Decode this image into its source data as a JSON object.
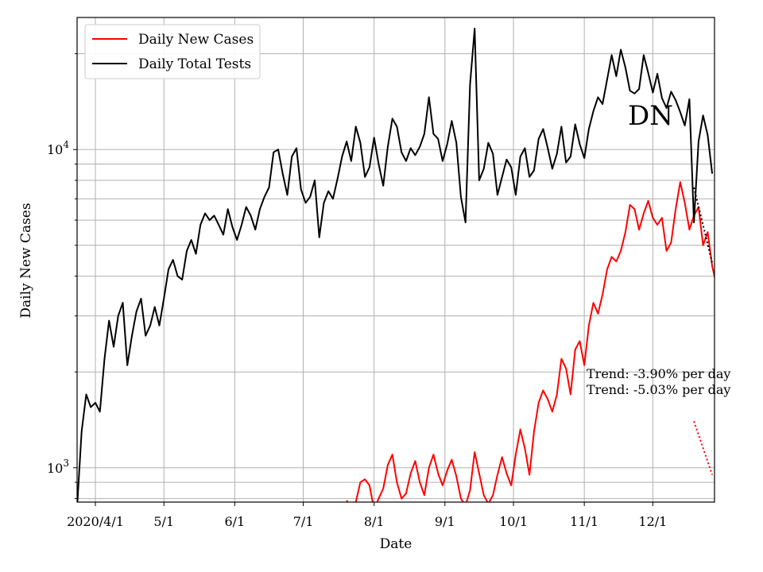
{
  "chart_data": {
    "type": "line",
    "xlabel": "Date",
    "ylabel": "Daily New Cases",
    "yscale": "log",
    "ylim": [
      780,
      26000
    ],
    "xlim_day": [
      -8,
      271
    ],
    "grid": true,
    "legend_position": "upper-left",
    "x_ticks": [
      {
        "day": 0,
        "label": "2020/4/1"
      },
      {
        "day": 30,
        "label": "5/1"
      },
      {
        "day": 61,
        "label": "6/1"
      },
      {
        "day": 91,
        "label": "7/1"
      },
      {
        "day": 122,
        "label": "8/1"
      },
      {
        "day": 153,
        "label": "9/1"
      },
      {
        "day": 183,
        "label": "10/1"
      },
      {
        "day": 214,
        "label": "11/1"
      },
      {
        "day": 244,
        "label": "12/1"
      }
    ],
    "y_major_ticks": [
      {
        "value": 1000,
        "base": "10",
        "exp": "3"
      },
      {
        "value": 10000,
        "base": "10",
        "exp": "4"
      }
    ],
    "y_minor_ticks": [
      800,
      900,
      2000,
      3000,
      4000,
      5000,
      6000,
      7000,
      8000,
      9000,
      20000
    ],
    "series": [
      {
        "name": "Daily New Cases",
        "color": "#ff0000",
        "points": [
          [
            110,
            790
          ],
          [
            112,
            740
          ],
          [
            114,
            780
          ],
          [
            116,
            900
          ],
          [
            118,
            920
          ],
          [
            120,
            880
          ],
          [
            122,
            740
          ],
          [
            124,
            800
          ],
          [
            126,
            860
          ],
          [
            128,
            1020
          ],
          [
            130,
            1100
          ],
          [
            132,
            900
          ],
          [
            134,
            800
          ],
          [
            136,
            830
          ],
          [
            138,
            960
          ],
          [
            140,
            1050
          ],
          [
            142,
            900
          ],
          [
            144,
            820
          ],
          [
            146,
            1000
          ],
          [
            148,
            1100
          ],
          [
            150,
            960
          ],
          [
            152,
            880
          ],
          [
            154,
            980
          ],
          [
            156,
            1060
          ],
          [
            158,
            940
          ],
          [
            160,
            800
          ],
          [
            162,
            760
          ],
          [
            164,
            850
          ],
          [
            166,
            1120
          ],
          [
            168,
            960
          ],
          [
            170,
            820
          ],
          [
            172,
            770
          ],
          [
            174,
            820
          ],
          [
            176,
            950
          ],
          [
            178,
            1080
          ],
          [
            180,
            960
          ],
          [
            182,
            880
          ],
          [
            184,
            1100
          ],
          [
            186,
            1320
          ],
          [
            188,
            1150
          ],
          [
            190,
            950
          ],
          [
            192,
            1300
          ],
          [
            194,
            1600
          ],
          [
            196,
            1750
          ],
          [
            198,
            1640
          ],
          [
            200,
            1500
          ],
          [
            202,
            1700
          ],
          [
            204,
            2200
          ],
          [
            206,
            2050
          ],
          [
            208,
            1700
          ],
          [
            210,
            2350
          ],
          [
            212,
            2500
          ],
          [
            214,
            2100
          ],
          [
            216,
            2800
          ],
          [
            218,
            3300
          ],
          [
            220,
            3050
          ],
          [
            222,
            3500
          ],
          [
            224,
            4200
          ],
          [
            226,
            4600
          ],
          [
            228,
            4450
          ],
          [
            230,
            4800
          ],
          [
            232,
            5500
          ],
          [
            234,
            6700
          ],
          [
            236,
            6500
          ],
          [
            238,
            5600
          ],
          [
            240,
            6300
          ],
          [
            242,
            6900
          ],
          [
            244,
            6100
          ],
          [
            246,
            5800
          ],
          [
            248,
            6100
          ],
          [
            250,
            4800
          ],
          [
            252,
            5100
          ],
          [
            254,
            6500
          ],
          [
            256,
            7900
          ],
          [
            258,
            6800
          ],
          [
            260,
            5600
          ],
          [
            262,
            6200
          ],
          [
            264,
            6600
          ],
          [
            266,
            5000
          ],
          [
            268,
            5500
          ],
          [
            270,
            4300
          ],
          [
            272,
            3700
          ],
          [
            274,
            5500
          ]
        ]
      },
      {
        "name": "Daily Total Tests",
        "color": "#000000",
        "points": [
          [
            -8,
            750
          ],
          [
            -6,
            1300
          ],
          [
            -4,
            1700
          ],
          [
            -2,
            1550
          ],
          [
            0,
            1600
          ],
          [
            2,
            1500
          ],
          [
            4,
            2200
          ],
          [
            6,
            2900
          ],
          [
            8,
            2400
          ],
          [
            10,
            3000
          ],
          [
            12,
            3300
          ],
          [
            14,
            2100
          ],
          [
            16,
            2600
          ],
          [
            18,
            3100
          ],
          [
            20,
            3400
          ],
          [
            22,
            2600
          ],
          [
            24,
            2800
          ],
          [
            26,
            3200
          ],
          [
            28,
            2800
          ],
          [
            30,
            3400
          ],
          [
            32,
            4200
          ],
          [
            34,
            4500
          ],
          [
            36,
            4000
          ],
          [
            38,
            3900
          ],
          [
            40,
            4800
          ],
          [
            42,
            5200
          ],
          [
            44,
            4700
          ],
          [
            46,
            5800
          ],
          [
            48,
            6300
          ],
          [
            50,
            6000
          ],
          [
            52,
            6200
          ],
          [
            54,
            5800
          ],
          [
            56,
            5400
          ],
          [
            58,
            6500
          ],
          [
            60,
            5700
          ],
          [
            62,
            5200
          ],
          [
            64,
            5800
          ],
          [
            66,
            6600
          ],
          [
            68,
            6200
          ],
          [
            70,
            5600
          ],
          [
            72,
            6500
          ],
          [
            74,
            7100
          ],
          [
            76,
            7600
          ],
          [
            78,
            9800
          ],
          [
            80,
            10000
          ],
          [
            82,
            8400
          ],
          [
            84,
            7200
          ],
          [
            86,
            9500
          ],
          [
            88,
            10100
          ],
          [
            90,
            7500
          ],
          [
            92,
            6800
          ],
          [
            94,
            7100
          ],
          [
            96,
            8000
          ],
          [
            98,
            5300
          ],
          [
            100,
            6800
          ],
          [
            102,
            7400
          ],
          [
            104,
            7000
          ],
          [
            106,
            8100
          ],
          [
            108,
            9500
          ],
          [
            110,
            10600
          ],
          [
            112,
            9200
          ],
          [
            114,
            11800
          ],
          [
            116,
            10500
          ],
          [
            118,
            8200
          ],
          [
            120,
            8800
          ],
          [
            122,
            10900
          ],
          [
            124,
            9000
          ],
          [
            126,
            7700
          ],
          [
            128,
            10200
          ],
          [
            130,
            12500
          ],
          [
            132,
            11800
          ],
          [
            134,
            9800
          ],
          [
            136,
            9200
          ],
          [
            138,
            10100
          ],
          [
            140,
            9600
          ],
          [
            142,
            10200
          ],
          [
            144,
            11200
          ],
          [
            146,
            14600
          ],
          [
            148,
            11200
          ],
          [
            150,
            10800
          ],
          [
            152,
            9200
          ],
          [
            154,
            10400
          ],
          [
            156,
            12300
          ],
          [
            158,
            10500
          ],
          [
            160,
            7100
          ],
          [
            162,
            5900
          ],
          [
            164,
            16000
          ],
          [
            166,
            24000
          ],
          [
            168,
            8000
          ],
          [
            170,
            8700
          ],
          [
            172,
            10500
          ],
          [
            174,
            9700
          ],
          [
            176,
            7200
          ],
          [
            178,
            8200
          ],
          [
            180,
            9300
          ],
          [
            182,
            8800
          ],
          [
            184,
            7200
          ],
          [
            186,
            9500
          ],
          [
            188,
            10100
          ],
          [
            190,
            8200
          ],
          [
            192,
            8600
          ],
          [
            194,
            10800
          ],
          [
            196,
            11600
          ],
          [
            198,
            10100
          ],
          [
            200,
            8700
          ],
          [
            202,
            9700
          ],
          [
            204,
            11800
          ],
          [
            206,
            9100
          ],
          [
            208,
            9500
          ],
          [
            210,
            12000
          ],
          [
            212,
            10400
          ],
          [
            214,
            9400
          ],
          [
            216,
            11600
          ],
          [
            218,
            13200
          ],
          [
            220,
            14600
          ],
          [
            222,
            13900
          ],
          [
            224,
            16600
          ],
          [
            226,
            19800
          ],
          [
            228,
            17000
          ],
          [
            230,
            20600
          ],
          [
            232,
            18100
          ],
          [
            234,
            15300
          ],
          [
            236,
            15000
          ],
          [
            238,
            15500
          ],
          [
            240,
            19800
          ],
          [
            242,
            17400
          ],
          [
            244,
            15100
          ],
          [
            246,
            17300
          ],
          [
            248,
            14500
          ],
          [
            250,
            13500
          ],
          [
            252,
            15200
          ],
          [
            254,
            14300
          ],
          [
            256,
            13100
          ],
          [
            258,
            11900
          ],
          [
            260,
            14400
          ],
          [
            262,
            5900
          ],
          [
            264,
            10600
          ],
          [
            266,
            12800
          ],
          [
            268,
            11100
          ],
          [
            270,
            8400
          ]
        ]
      }
    ],
    "trend_lines": [
      {
        "color": "#000000",
        "style": "dotted",
        "points": [
          [
            262,
            7600
          ],
          [
            270,
            4400
          ]
        ]
      },
      {
        "color": "#ff0000",
        "style": "dotted",
        "points": [
          [
            262,
            1400
          ],
          [
            270,
            950
          ]
        ]
      }
    ],
    "annotations": [
      "Trend: -3.90% per day",
      "Trend: -5.03% per day"
    ],
    "marker_label": "DN"
  }
}
